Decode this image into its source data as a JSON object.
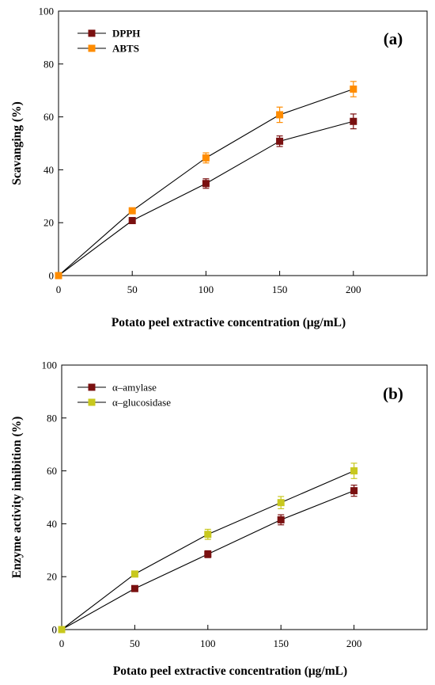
{
  "chart_data": [
    {
      "type": "line",
      "panel_label": "(a)",
      "x": [
        0,
        50,
        100,
        150,
        200
      ],
      "xlim": [
        0,
        250
      ],
      "ylim": [
        0,
        100
      ],
      "xticks": [
        0,
        50,
        100,
        150,
        200
      ],
      "yticks": [
        0,
        20,
        40,
        60,
        80,
        100
      ],
      "xlabel": "Potato peel extractive concentration (μg/mL)",
      "ylabel": "Scavanging (%)",
      "legend_position": "top-left",
      "legend_bold": true,
      "series": [
        {
          "name": "DPPH",
          "color": "#7a1010",
          "values": [
            0,
            20.8,
            34.8,
            50.8,
            58.3
          ],
          "errors": [
            0,
            1.0,
            1.8,
            2.0,
            2.8
          ]
        },
        {
          "name": "ABTS",
          "color": "#ff8c00",
          "values": [
            0,
            24.5,
            44.5,
            60.8,
            70.5
          ],
          "errors": [
            0,
            0.8,
            1.9,
            2.9,
            2.9
          ]
        }
      ]
    },
    {
      "type": "line",
      "panel_label": "(b)",
      "x": [
        0,
        50,
        100,
        150,
        200
      ],
      "xlim": [
        0,
        250
      ],
      "ylim": [
        0,
        100
      ],
      "xticks": [
        0,
        50,
        100,
        150,
        200
      ],
      "yticks": [
        0,
        20,
        40,
        60,
        80,
        100
      ],
      "xlabel": "Potato peel extractive concentration (μg/mL)",
      "ylabel": "Enzyme activity inhibition (%)",
      "legend_position": "top-left",
      "legend_bold": false,
      "series": [
        {
          "name": "α–amylase",
          "color": "#7a1010",
          "values": [
            0,
            15.5,
            28.5,
            41.5,
            52.5
          ],
          "errors": [
            0,
            0.8,
            1.3,
            1.9,
            2.1
          ]
        },
        {
          "name": "α–glucosidase",
          "color": "#c8c81e",
          "values": [
            0,
            21.0,
            36.0,
            48.0,
            60.0
          ],
          "errors": [
            0,
            0.8,
            1.9,
            2.3,
            2.9
          ]
        }
      ]
    }
  ]
}
